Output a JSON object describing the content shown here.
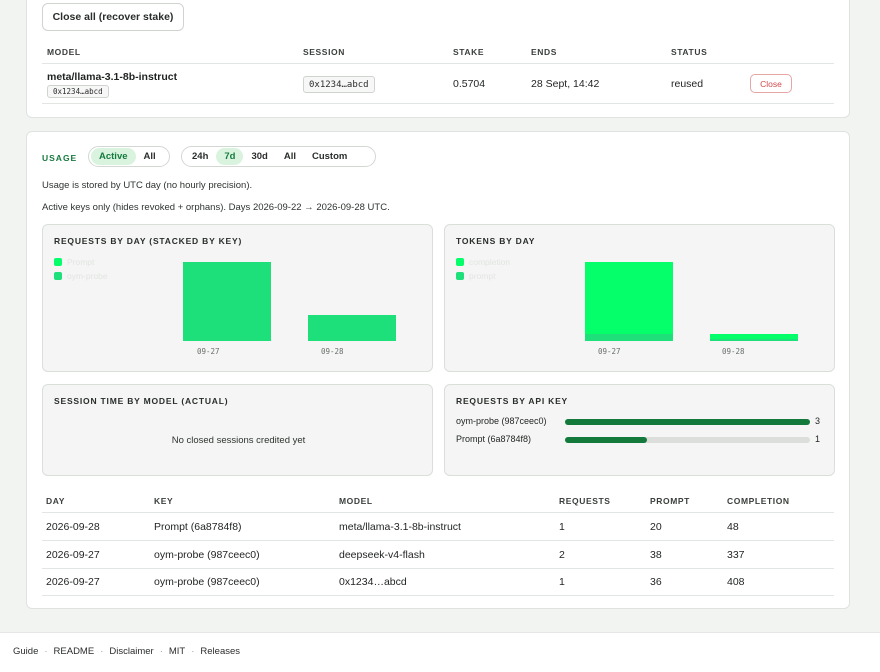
{
  "sessions": {
    "close_all_label": "Close all (recover stake)",
    "columns": [
      "MODEL",
      "SESSION",
      "STAKE",
      "ENDS",
      "STATUS"
    ],
    "row": {
      "model": "meta/llama-3.1-8b-instruct",
      "model_id": "0x1234…abcd",
      "session": "0x1234…abcd",
      "stake": "0.5704",
      "ends": "28 Sept, 14:42",
      "status": "reused",
      "close_label": "Close"
    }
  },
  "usage": {
    "title": "USAGE",
    "scope_options": [
      "Active",
      "All"
    ],
    "scope_selected": "Active",
    "range_options": [
      "24h",
      "7d",
      "30d",
      "All",
      "Custom"
    ],
    "range_selected": "7d",
    "note_utc": "Usage is stored by UTC day (no hourly precision).",
    "note_range": "Active keys only (hides revoked + orphans). Days 2026-09-22 → 2026-09-28 UTC.",
    "colors": {
      "accent": "#167a3e",
      "bar_primary": "#1de07a",
      "bar_bright": "#05ff6a",
      "bar_dark": "#137a3c"
    }
  },
  "charts": {
    "requests_by_day": {
      "title": "REQUESTS BY DAY (STACKED BY KEY)",
      "legend": [
        "Prompt",
        "oym-probe"
      ]
    },
    "tokens_by_day": {
      "title": "TOKENS BY DAY",
      "legend": [
        "completion",
        "prompt"
      ]
    },
    "session_time": {
      "title": "SESSION TIME BY MODEL (ACTUAL)",
      "empty_text": "No closed sessions credited yet"
    },
    "requests_by_key": {
      "title": "REQUESTS BY API KEY"
    }
  },
  "chart_data": [
    {
      "type": "bar",
      "title": "REQUESTS BY DAY (STACKED BY KEY)",
      "categories": [
        "09-27",
        "09-28"
      ],
      "series": [
        {
          "name": "Prompt",
          "values": [
            0,
            1
          ]
        },
        {
          "name": "oym-probe",
          "values": [
            3,
            0
          ]
        }
      ],
      "ylim": [
        0,
        3
      ]
    },
    {
      "type": "bar",
      "title": "TOKENS BY DAY",
      "categories": [
        "09-27",
        "09-28"
      ],
      "series": [
        {
          "name": "completion",
          "values": [
            745,
            48
          ]
        },
        {
          "name": "prompt",
          "values": [
            74,
            20
          ]
        }
      ],
      "ylim": [
        0,
        819
      ]
    },
    {
      "type": "bar",
      "title": "REQUESTS BY API KEY",
      "categories": [
        "oym-probe (987ceec0)",
        "Prompt (6a8784f8)"
      ],
      "values": [
        3,
        1
      ],
      "xlim": [
        0,
        3
      ]
    }
  ],
  "usage_table": {
    "columns": [
      "DAY",
      "KEY",
      "MODEL",
      "REQUESTS",
      "PROMPT",
      "COMPLETION"
    ],
    "rows": [
      {
        "day": "2026-09-28",
        "key": "Prompt (6a8784f8)",
        "model": "meta/llama-3.1-8b-instruct",
        "requests": "1",
        "prompt": "20",
        "completion": "48"
      },
      {
        "day": "2026-09-27",
        "key": "oym-probe (987ceec0)",
        "model": "deepseek-v4-flash",
        "requests": "2",
        "prompt": "38",
        "completion": "337"
      },
      {
        "day": "2026-09-27",
        "key": "oym-probe (987ceec0)",
        "model": "0x1234…abcd",
        "requests": "1",
        "prompt": "36",
        "completion": "408"
      }
    ]
  },
  "footer": {
    "links": [
      "Guide",
      "README",
      "Disclaimer",
      "MIT",
      "Releases"
    ]
  }
}
